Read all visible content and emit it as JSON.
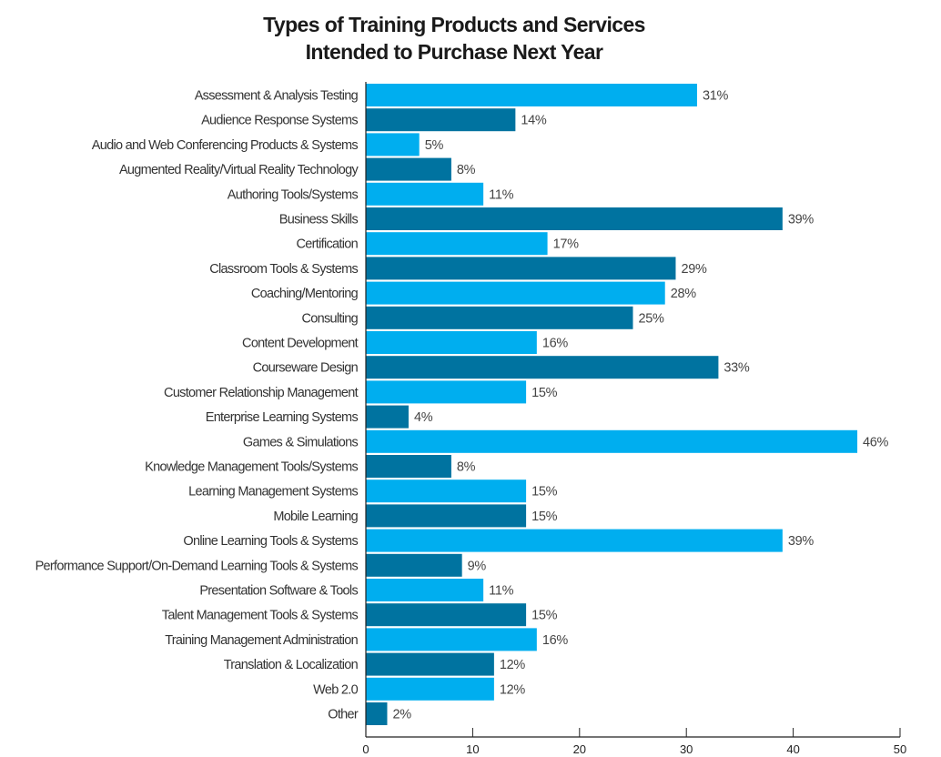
{
  "chart_data": {
    "type": "bar",
    "orientation": "horizontal",
    "title_lines": [
      "Types of Training Products and Services",
      "Intended to Purchase Next Year"
    ],
    "xlabel": "",
    "ylabel": "",
    "xlim": [
      0,
      50
    ],
    "xticks": [
      "0",
      "10",
      "20",
      "30",
      "40",
      "50"
    ],
    "grid": false,
    "value_suffix": "%",
    "colors": {
      "light": "#00AEEF",
      "dark": "#0073A0",
      "axis": "#222222"
    },
    "categories": [
      "Assessment & Analysis Testing",
      "Audience Response Systems",
      "Audio and Web Conferencing Products & Systems",
      "Augmented Reality/Virtual Reality Technology",
      "Authoring Tools/Systems",
      "Business Skills",
      "Certification",
      "Classroom Tools & Systems",
      "Coaching/Mentoring",
      "Consulting",
      "Content Development",
      "Courseware Design",
      "Customer Relationship Management",
      "Enterprise Learning Systems",
      "Games & Simulations",
      "Knowledge Management Tools/Systems",
      "Learning Management Systems",
      "Mobile Learning",
      "Online Learning Tools & Systems",
      "Performance Support/On-Demand Learning Tools & Systems",
      "Presentation Software & Tools",
      "Talent Management Tools & Systems",
      "Training Management Administration",
      "Translation & Localization",
      "Web 2.0",
      "Other"
    ],
    "values": [
      31,
      14,
      5,
      8,
      11,
      39,
      17,
      29,
      28,
      25,
      16,
      33,
      15,
      4,
      46,
      8,
      15,
      15,
      39,
      9,
      11,
      15,
      16,
      12,
      12,
      2
    ],
    "value_labels": [
      "31%",
      "14%",
      "5%",
      "8%",
      "11%",
      "39%",
      "17%",
      "29%",
      "28%",
      "25%",
      "16%",
      "33%",
      "15%",
      "4%",
      "46%",
      "8%",
      "15%",
      "15%",
      "39%",
      "9%",
      "11%",
      "15%",
      "16%",
      "12%",
      "12%",
      "2%"
    ]
  }
}
